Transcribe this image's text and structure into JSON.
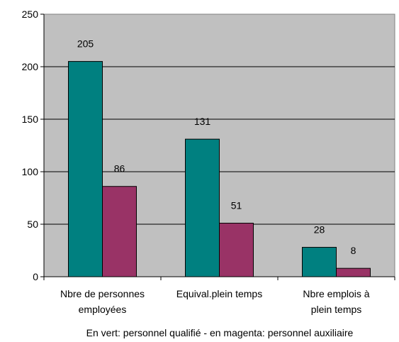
{
  "chart_data": {
    "type": "bar",
    "categories": [
      [
        "Nbre de personnes",
        "employées"
      ],
      [
        "Equival.plein temps"
      ],
      [
        "Nbre emplois à",
        "plein temps"
      ]
    ],
    "series": [
      {
        "values": [
          205,
          131,
          28
        ],
        "color": "#008080"
      },
      {
        "values": [
          86,
          51,
          8
        ],
        "color": "#993366"
      }
    ],
    "ylim": [
      0,
      250
    ],
    "yticks": [
      0,
      50,
      100,
      150,
      200,
      250
    ],
    "xlabel": "En vert: personnel qualifié - en magenta: personnel auxiliaire",
    "ylabel": "",
    "title": "",
    "grid": true,
    "plot_background": "#c0c0c0",
    "data_labels": true
  }
}
